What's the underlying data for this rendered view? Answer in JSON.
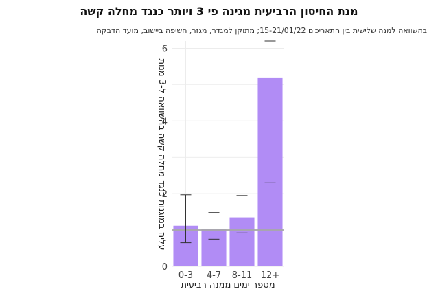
{
  "chart_data": {
    "type": "bar",
    "title": "מנת החיסון הרביעית מגינה פי 3 ויותר כנגד מחלה קשה",
    "subtitle": "בהשוואה למנה שלישית בין התאריכים 15-21/01/22; מתוקן למגדר, מגזר, חשיפה ביישוב, מועד הדבקה",
    "xlabel": "מספר ימים ממנה רביעית",
    "ylabel": "עליה במוגנות כנגד מחלה קשה בהשוואה ל-3 מנות",
    "categories": [
      "0-3",
      "4-7",
      "8-11",
      "12+"
    ],
    "values": [
      1.12,
      1.02,
      1.35,
      5.2
    ],
    "error_low": [
      0.65,
      0.75,
      0.92,
      2.3
    ],
    "error_high": [
      1.97,
      1.48,
      1.95,
      6.2
    ],
    "ylim": [
      0,
      6.2
    ],
    "yticks": [
      0,
      2,
      4,
      6
    ],
    "reference_line": 1,
    "grid": true,
    "bar_color": "#b18cf5",
    "reference_color": "#a8a8a8"
  }
}
